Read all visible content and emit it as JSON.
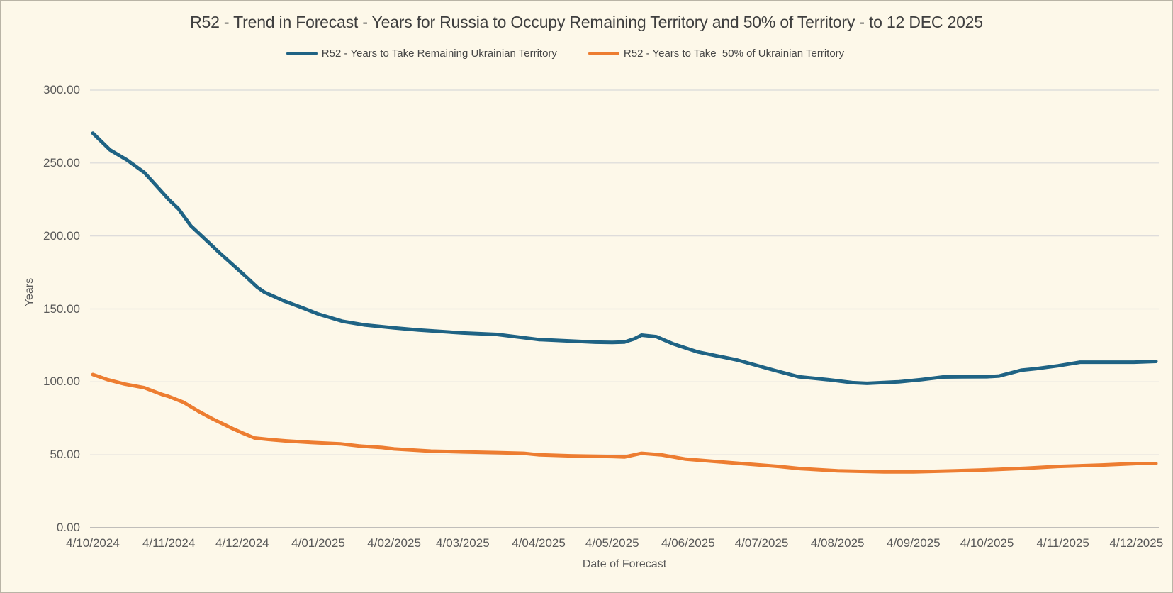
{
  "window": {
    "background": "#FDF8E9",
    "border_color": "#B9B4A6",
    "gridline_color": "#D9D9D9",
    "baseline_color": "#ABABAB",
    "text_color": "#595959",
    "title_color": "#3F3F3F"
  },
  "chart_data": {
    "type": "line",
    "title": "R52 - Trend in Forecast - Years for Russia to Occupy Remaining Territory and 50% of Territory - to 12 DEC 2025",
    "xlabel": "Date of Forecast",
    "ylabel": "Years",
    "ylim": [
      0,
      300
    ],
    "x_domain_days": [
      0,
      434
    ],
    "grid": true,
    "legend_position": "top",
    "y_ticks": [
      {
        "value": 0,
        "label": "0.00"
      },
      {
        "value": 50,
        "label": "50.00"
      },
      {
        "value": 100,
        "label": "100.00"
      },
      {
        "value": 150,
        "label": "150.00"
      },
      {
        "value": 200,
        "label": "200.00"
      },
      {
        "value": 250,
        "label": "250.00"
      },
      {
        "value": 300,
        "label": "300.00"
      }
    ],
    "x_ticks": [
      {
        "day": 0,
        "label": "4/10/2024"
      },
      {
        "day": 31,
        "label": "4/11/2024"
      },
      {
        "day": 61,
        "label": "4/12/2024"
      },
      {
        "day": 92,
        "label": "4/01/2025"
      },
      {
        "day": 123,
        "label": "4/02/2025"
      },
      {
        "day": 151,
        "label": "4/03/2025"
      },
      {
        "day": 182,
        "label": "4/04/2025"
      },
      {
        "day": 212,
        "label": "4/05/2025"
      },
      {
        "day": 243,
        "label": "4/06/2025"
      },
      {
        "day": 273,
        "label": "4/07/2025"
      },
      {
        "day": 304,
        "label": "4/08/2025"
      },
      {
        "day": 335,
        "label": "4/09/2025"
      },
      {
        "day": 365,
        "label": "4/10/2025"
      },
      {
        "day": 396,
        "label": "4/11/2025"
      },
      {
        "day": 426,
        "label": "4/12/2025"
      }
    ],
    "series": [
      {
        "name": "R52 - Years to Take Remaining Ukrainian Territory",
        "color": "#1F6384",
        "points": [
          [
            0,
            270.5
          ],
          [
            7,
            259
          ],
          [
            14,
            252
          ],
          [
            21,
            243.5
          ],
          [
            24,
            238
          ],
          [
            31,
            225
          ],
          [
            35,
            218.5
          ],
          [
            40,
            207
          ],
          [
            47,
            196
          ],
          [
            52,
            188
          ],
          [
            56,
            182
          ],
          [
            61,
            174.5
          ],
          [
            67,
            165
          ],
          [
            70,
            161.5
          ],
          [
            78,
            155.5
          ],
          [
            86,
            150.5
          ],
          [
            92,
            146.5
          ],
          [
            102,
            141.5
          ],
          [
            111,
            139
          ],
          [
            123,
            137
          ],
          [
            133,
            135.5
          ],
          [
            151,
            133.5
          ],
          [
            165,
            132.5
          ],
          [
            182,
            129
          ],
          [
            195,
            128
          ],
          [
            205,
            127.2
          ],
          [
            212,
            127
          ],
          [
            217,
            127.3
          ],
          [
            221,
            129.5
          ],
          [
            224,
            132
          ],
          [
            230,
            131
          ],
          [
            237,
            126
          ],
          [
            247,
            120.5
          ],
          [
            263,
            115
          ],
          [
            278,
            108
          ],
          [
            288,
            103.5
          ],
          [
            300,
            101.5
          ],
          [
            310,
            99.5
          ],
          [
            316,
            99
          ],
          [
            329,
            100
          ],
          [
            338,
            101.5
          ],
          [
            347,
            103.3
          ],
          [
            355,
            103.4
          ],
          [
            365,
            103.5
          ],
          [
            370,
            104
          ],
          [
            379,
            108
          ],
          [
            385,
            109
          ],
          [
            394,
            111
          ],
          [
            403,
            113.5
          ],
          [
            412,
            113.5
          ],
          [
            425,
            113.5
          ],
          [
            434,
            114
          ]
        ]
      },
      {
        "name": "R52 - Years to Take  50% of Ukrainian Territory",
        "color": "#ED7D31",
        "points": [
          [
            0,
            105
          ],
          [
            6,
            101.5
          ],
          [
            13,
            98.5
          ],
          [
            21,
            96
          ],
          [
            28,
            91.5
          ],
          [
            31,
            90
          ],
          [
            37,
            86
          ],
          [
            43,
            80
          ],
          [
            49,
            74.5
          ],
          [
            57,
            68
          ],
          [
            61,
            65
          ],
          [
            66,
            61.5
          ],
          [
            72,
            60.5
          ],
          [
            79,
            59.5
          ],
          [
            89,
            58.5
          ],
          [
            101,
            57.5
          ],
          [
            109,
            56
          ],
          [
            118,
            55
          ],
          [
            123,
            54
          ],
          [
            138,
            52.5
          ],
          [
            151,
            52
          ],
          [
            165,
            51.5
          ],
          [
            176,
            51
          ],
          [
            182,
            50
          ],
          [
            195,
            49.3
          ],
          [
            212,
            48.8
          ],
          [
            217,
            48.5
          ],
          [
            224,
            51
          ],
          [
            232,
            50
          ],
          [
            242,
            47
          ],
          [
            261,
            44.5
          ],
          [
            280,
            42
          ],
          [
            289,
            40.5
          ],
          [
            304,
            39
          ],
          [
            323,
            38.3
          ],
          [
            335,
            38.3
          ],
          [
            352,
            39
          ],
          [
            362,
            39.5
          ],
          [
            381,
            40.8
          ],
          [
            394,
            42
          ],
          [
            412,
            43
          ],
          [
            426,
            44
          ],
          [
            434,
            44
          ]
        ]
      }
    ]
  }
}
